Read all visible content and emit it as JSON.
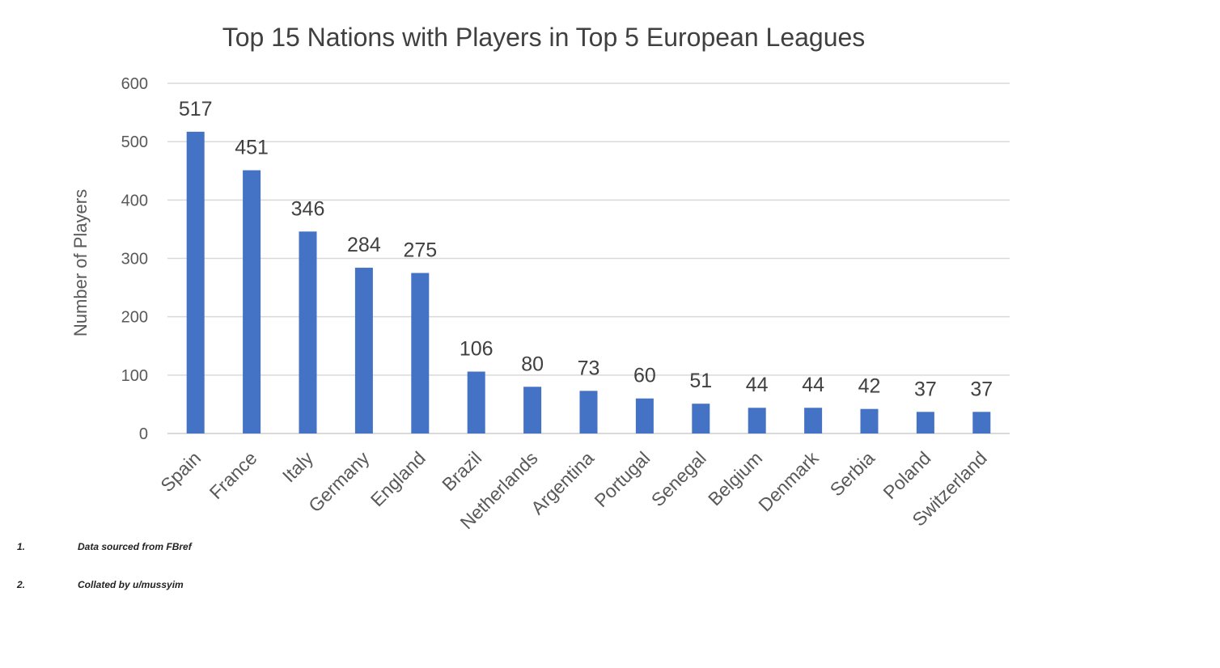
{
  "chart_data": {
    "type": "bar",
    "title": "Top 15 Nations with Players in Top 5 European Leagues",
    "xlabel": "",
    "ylabel": "Number of Players",
    "ylim": [
      0,
      600
    ],
    "yticks": [
      "0",
      "100",
      "200",
      "300",
      "400",
      "500",
      "600"
    ],
    "grid": true,
    "legend": "none",
    "bar_color": "#4472c4",
    "categories": [
      "Spain",
      "France",
      "Italy",
      "Germany",
      "England",
      "Brazil",
      "Netherlands",
      "Argentina",
      "Portugal",
      "Senegal",
      "Belgium",
      "Denmark",
      "Serbia",
      "Poland",
      "Switzerland"
    ],
    "values": [
      517,
      451,
      346,
      284,
      275,
      106,
      80,
      73,
      60,
      51,
      44,
      44,
      42,
      37,
      37
    ]
  },
  "footnotes": [
    {
      "number": "1.",
      "text": "Data sourced from FBref"
    },
    {
      "number": "2.",
      "text": "Collated by u/mussyim"
    }
  ]
}
